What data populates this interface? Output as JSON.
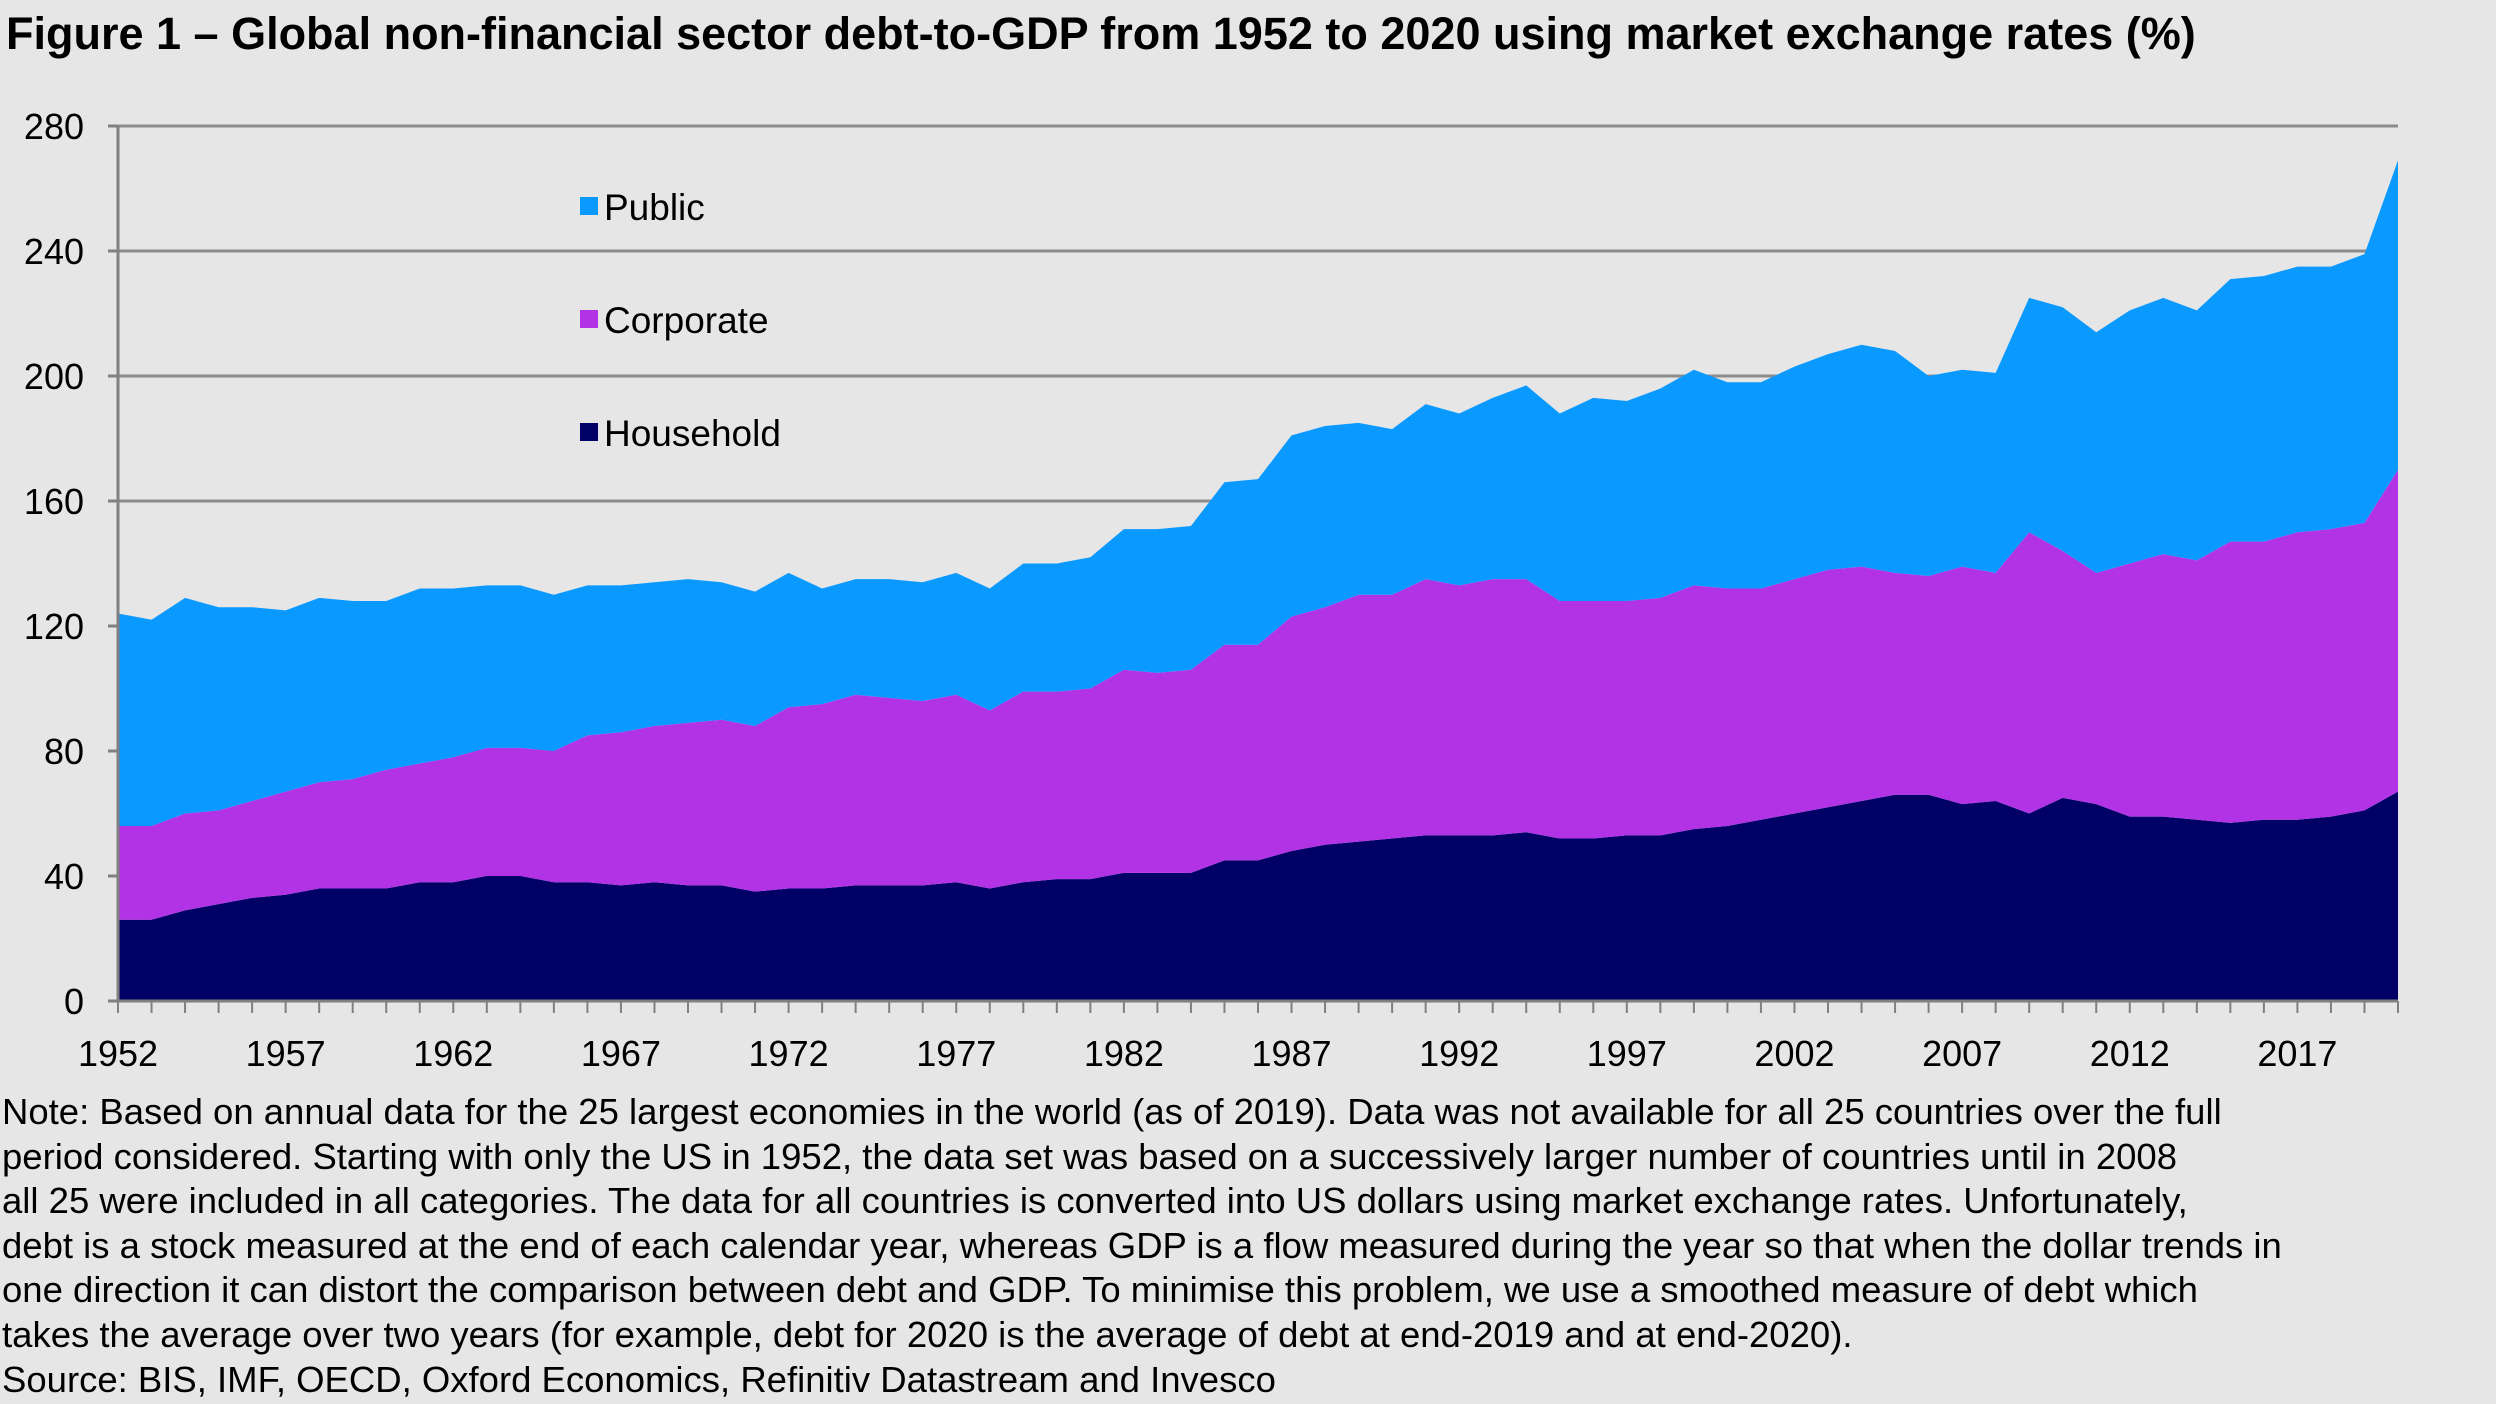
{
  "title": "Figure 1 – Global non-financial sector debt-to-GDP from 1952 to 2020 using market exchange rates (%)",
  "notes": [
    "Note: Based on annual data for the 25 largest economies in the world (as of 2019).  Data was not available for all 25 countries over the full",
    "period considered.  Starting with only the US in 1952, the data set was based on a successively larger number of countries until in 2008",
    " all 25 were included in all categories.  The data for all countries is converted into US dollars using market exchange rates.  Unfortunately,",
    "debt is a stock measured at the end of each calendar year, whereas GDP is a flow measured during the year so that when the dollar trends in",
    "one direction it can distort the comparison between debt and GDP.  To minimise this problem, we use a smoothed measure of debt which",
    "takes the average over two years (for example, debt for 2020 is the average of debt at end-2019 and at end-2020)."
  ],
  "source": "Source: BIS, IMF, OECD, Oxford Economics, Refinitiv Datastream and Invesco",
  "chart_data": {
    "type": "area",
    "stacked": true,
    "x": [
      1952,
      1953,
      1954,
      1955,
      1956,
      1957,
      1958,
      1959,
      1960,
      1961,
      1962,
      1963,
      1964,
      1965,
      1966,
      1967,
      1968,
      1969,
      1970,
      1971,
      1972,
      1973,
      1974,
      1975,
      1976,
      1977,
      1978,
      1979,
      1980,
      1981,
      1982,
      1983,
      1984,
      1985,
      1986,
      1987,
      1988,
      1989,
      1990,
      1991,
      1992,
      1993,
      1994,
      1995,
      1996,
      1997,
      1998,
      1999,
      2000,
      2001,
      2002,
      2003,
      2004,
      2005,
      2006,
      2007,
      2008,
      2009,
      2010,
      2011,
      2012,
      2013,
      2014,
      2015,
      2016,
      2017,
      2018,
      2019,
      2020
    ],
    "xticks": [
      "1952",
      "1957",
      "1962",
      "1967",
      "1972",
      "1977",
      "1982",
      "1987",
      "1992",
      "1997",
      "2002",
      "2007",
      "2012",
      "2017"
    ],
    "ylim": [
      0,
      280
    ],
    "yticks": [
      "0",
      "40",
      "80",
      "120",
      "160",
      "200",
      "240",
      "280"
    ],
    "grid": "horizontal",
    "legend_position": "top-left",
    "series": [
      {
        "name": "Household",
        "color": "#000066",
        "values": [
          26,
          26,
          29,
          31,
          33,
          34,
          36,
          36,
          36,
          38,
          38,
          40,
          40,
          38,
          38,
          37,
          38,
          37,
          37,
          35,
          36,
          36,
          37,
          37,
          37,
          38,
          36,
          38,
          39,
          39,
          41,
          41,
          41,
          45,
          45,
          48,
          50,
          51,
          52,
          53,
          53,
          53,
          54,
          52,
          52,
          53,
          53,
          55,
          56,
          58,
          60,
          62,
          64,
          66,
          66,
          63,
          64,
          60,
          65,
          63,
          59,
          59,
          58,
          57,
          58,
          58,
          59,
          61,
          67
        ]
      },
      {
        "name": "Corporate",
        "color": "#b233e6",
        "values": [
          30,
          30,
          31,
          30,
          31,
          33,
          34,
          35,
          38,
          38,
          40,
          41,
          41,
          42,
          47,
          49,
          50,
          52,
          53,
          53,
          58,
          59,
          61,
          60,
          59,
          60,
          57,
          61,
          60,
          61,
          65,
          64,
          65,
          69,
          69,
          75,
          76,
          79,
          78,
          82,
          80,
          82,
          81,
          76,
          76,
          75,
          76,
          78,
          76,
          74,
          75,
          76,
          75,
          71,
          70,
          76,
          73,
          90,
          79,
          74,
          81,
          84,
          83,
          90,
          89,
          92,
          92,
          92,
          103
        ]
      },
      {
        "name": "Public",
        "color": "#0a99ff",
        "values": [
          68,
          66,
          69,
          65,
          62,
          58,
          59,
          57,
          54,
          56,
          54,
          52,
          52,
          50,
          48,
          47,
          46,
          46,
          44,
          43,
          43,
          37,
          37,
          38,
          38,
          39,
          39,
          41,
          41,
          42,
          45,
          46,
          46,
          52,
          53,
          58,
          58,
          55,
          53,
          56,
          55,
          58,
          62,
          60,
          65,
          64,
          67,
          69,
          66,
          66,
          68,
          69,
          71,
          71,
          64,
          63,
          64,
          75,
          78,
          77,
          81,
          82,
          80,
          84,
          85,
          85,
          84,
          86,
          99
        ]
      }
    ]
  }
}
